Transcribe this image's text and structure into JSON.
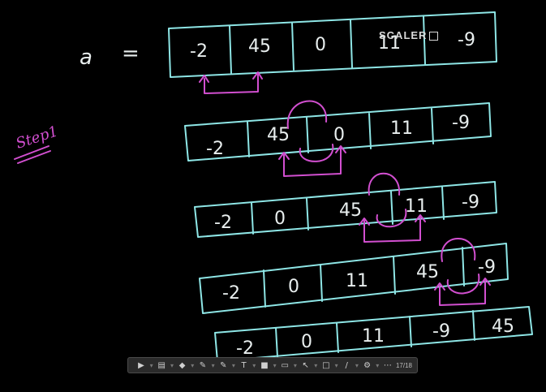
{
  "board": {
    "variable_label": "a",
    "equals_sign": "=",
    "step_label": "Step1",
    "arrays": [
      {
        "cells": [
          "-2",
          "45",
          "0",
          "11",
          "-9"
        ]
      },
      {
        "cells": [
          "-2",
          "45",
          "0",
          "11",
          "-9"
        ]
      },
      {
        "cells": [
          "-2",
          "0",
          "45",
          "11",
          "-9"
        ]
      },
      {
        "cells": [
          "-2",
          "0",
          "11",
          "45",
          "-9"
        ]
      },
      {
        "cells": [
          "-2",
          "0",
          "11",
          "-9",
          "45"
        ]
      }
    ],
    "colors": {
      "ink": "#8ee6e6",
      "highlight": "#d24fd0",
      "text": "#e8eeee",
      "background": "#000000"
    }
  },
  "watermark": {
    "text": "SCALER"
  },
  "toolbar": {
    "tools": [
      {
        "icon": "play-icon",
        "glyph": "▶"
      },
      {
        "icon": "pages-icon",
        "glyph": "▤"
      },
      {
        "icon": "highlighter-icon",
        "glyph": "◆"
      },
      {
        "icon": "pen-icon",
        "glyph": "✎"
      },
      {
        "icon": "marker-icon",
        "glyph": "✎"
      },
      {
        "icon": "text-icon",
        "glyph": "T"
      },
      {
        "icon": "shape-icon",
        "glyph": "■"
      },
      {
        "icon": "eraser-icon",
        "glyph": "▭"
      },
      {
        "icon": "pointer-icon",
        "glyph": "↖"
      },
      {
        "icon": "rectangle-icon",
        "glyph": "□"
      },
      {
        "icon": "line-icon",
        "glyph": "/"
      },
      {
        "icon": "settings-icon",
        "glyph": "⚙"
      },
      {
        "icon": "more-icon",
        "glyph": "⋯"
      }
    ],
    "page_indicator": "17/18"
  }
}
